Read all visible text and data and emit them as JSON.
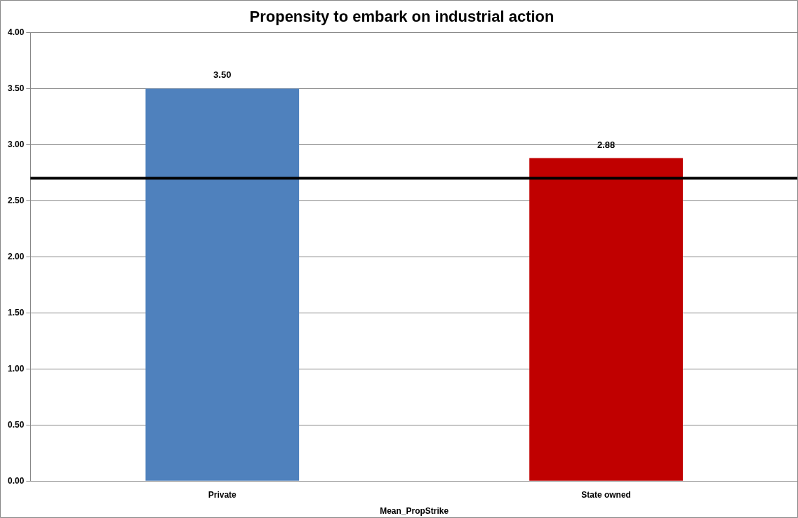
{
  "chart_data": {
    "type": "bar",
    "title": "Propensity to embark on industrial action",
    "xlabel": "Mean_PropStrike",
    "categories": [
      "Private",
      "State owned"
    ],
    "values": [
      3.5,
      2.88
    ],
    "colors": [
      "#4f81bd",
      "#c00000"
    ],
    "ylim": [
      0,
      4
    ],
    "yticks": [
      {
        "value": 0,
        "label": "0.00"
      },
      {
        "value": 0.5,
        "label": "0.50"
      },
      {
        "value": 1,
        "label": "1.00"
      },
      {
        "value": 1.5,
        "label": "1.50"
      },
      {
        "value": 2,
        "label": "2.00"
      },
      {
        "value": 2.5,
        "label": "2.50"
      },
      {
        "value": 3,
        "label": "3.00"
      },
      {
        "value": 3.5,
        "label": "3.50"
      },
      {
        "value": 4,
        "label": "4.00"
      }
    ],
    "value_labels": [
      "3.50",
      "2.88"
    ],
    "grid": "y",
    "legend": false,
    "ref_lines": [
      {
        "axis": "y",
        "value": 2.7,
        "color": "#000000"
      }
    ]
  }
}
